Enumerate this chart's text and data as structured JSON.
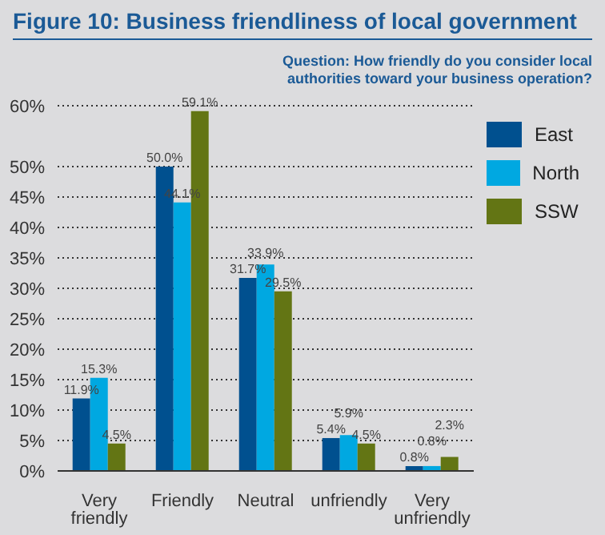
{
  "chart_data": {
    "type": "bar",
    "title": "Figure 10: Business friendliness of local government",
    "subtitle": "Question: How friendly do you consider local authorities toward your business operation?",
    "categories": [
      "Very friendly",
      "Friendly",
      "Neutral",
      "unfriendly",
      "Very unfriendly"
    ],
    "series": [
      {
        "name": "East",
        "color": "#00508f",
        "values": [
          11.9,
          50.0,
          31.7,
          5.4,
          0.8
        ],
        "value_labels": [
          "11.9%",
          "50.0%",
          "31.7%",
          "5.4%",
          "0.8%"
        ]
      },
      {
        "name": "North",
        "color": "#00a8e1",
        "values": [
          15.3,
          44.1,
          33.9,
          5.9,
          0.8
        ],
        "value_labels": [
          "15.3%",
          "44.1%",
          "33.9%",
          "5.9%",
          "0.8%"
        ]
      },
      {
        "name": "SSW",
        "color": "#637514",
        "values": [
          4.5,
          59.1,
          29.5,
          4.5,
          2.3
        ],
        "value_labels": [
          "4.5%",
          "59.1%",
          "29.5%",
          "4.5%",
          "2.3%"
        ]
      }
    ],
    "ylim": [
      0,
      60
    ],
    "yticks": [
      {
        "value": 0,
        "label": "0%"
      },
      {
        "value": 5,
        "label": "5%"
      },
      {
        "value": 10,
        "label": "10%"
      },
      {
        "value": 15,
        "label": "15%"
      },
      {
        "value": 20,
        "label": "20%"
      },
      {
        "value": 25,
        "label": "25%"
      },
      {
        "value": 30,
        "label": "30%"
      },
      {
        "value": 35,
        "label": "35%"
      },
      {
        "value": 40,
        "label": "40%"
      },
      {
        "value": 45,
        "label": "45%"
      },
      {
        "value": 50,
        "label": "50%"
      },
      {
        "value": 60,
        "label": "60%"
      }
    ],
    "grid": "y",
    "legend": "top right"
  }
}
